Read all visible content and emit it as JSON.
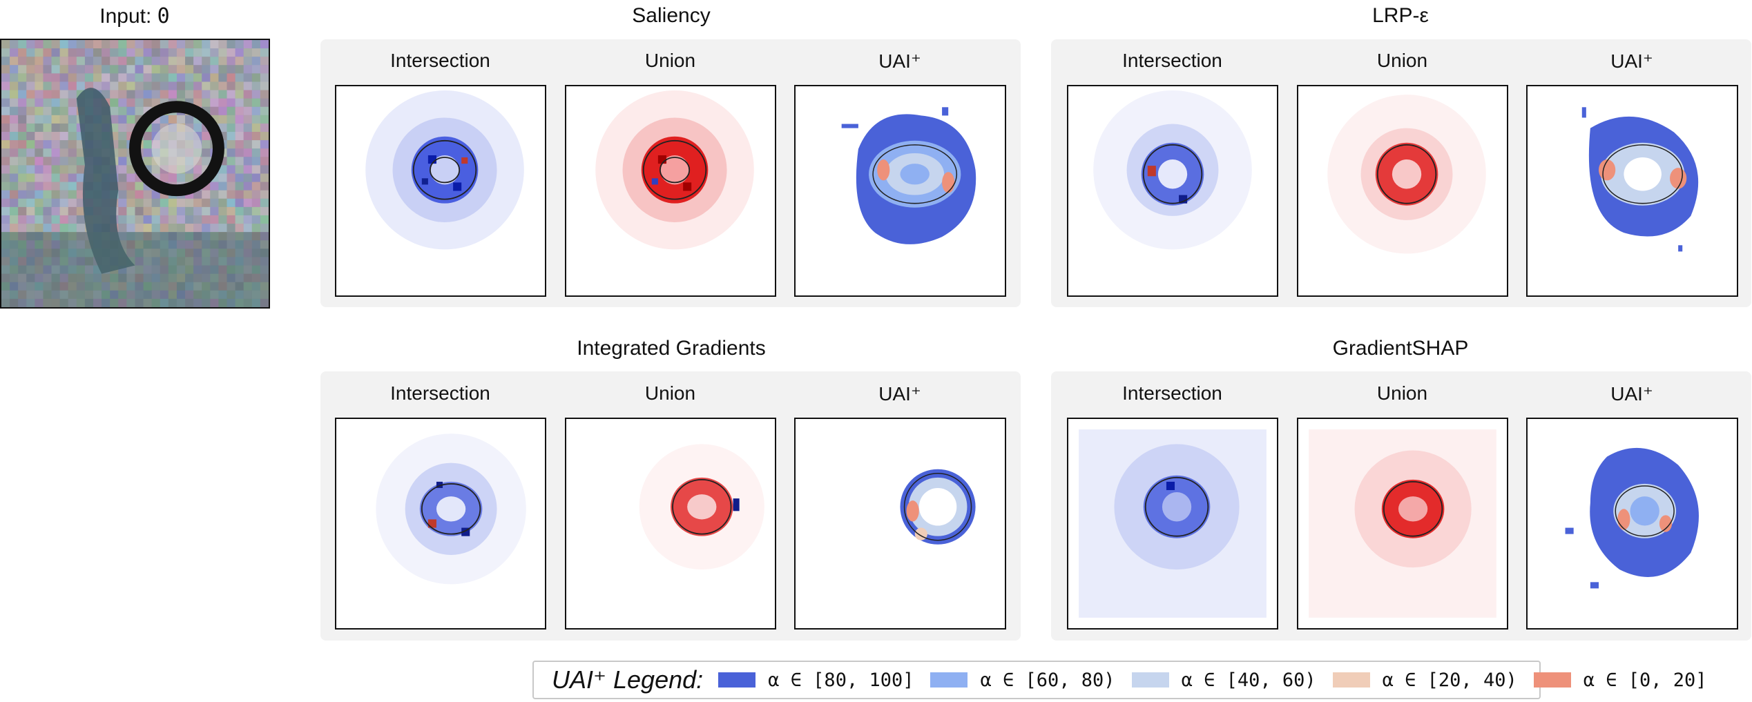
{
  "input": {
    "label_prefix": "Input: ",
    "label_value": "0"
  },
  "methods": [
    {
      "title": "Saliency"
    },
    {
      "title": "LRP-ε"
    },
    {
      "title": "Integrated Gradients"
    },
    {
      "title": "GradientSHAP"
    }
  ],
  "columns": [
    "Intersection",
    "Union",
    "UAI⁺"
  ],
  "legend": {
    "title": "UAI⁺ Legend:",
    "items": [
      {
        "label": "α ∈ [80, 100]",
        "color": "#4a62d8"
      },
      {
        "label": "α ∈ [60, 80)",
        "color": "#8fb0f2"
      },
      {
        "label": "α ∈ [40, 60)",
        "color": "#c6d5ee"
      },
      {
        "label": "α ∈ [20, 40)",
        "color": "#f0cdb8"
      },
      {
        "label": "α ∈ [0, 20]",
        "color": "#ee917a"
      }
    ]
  }
}
